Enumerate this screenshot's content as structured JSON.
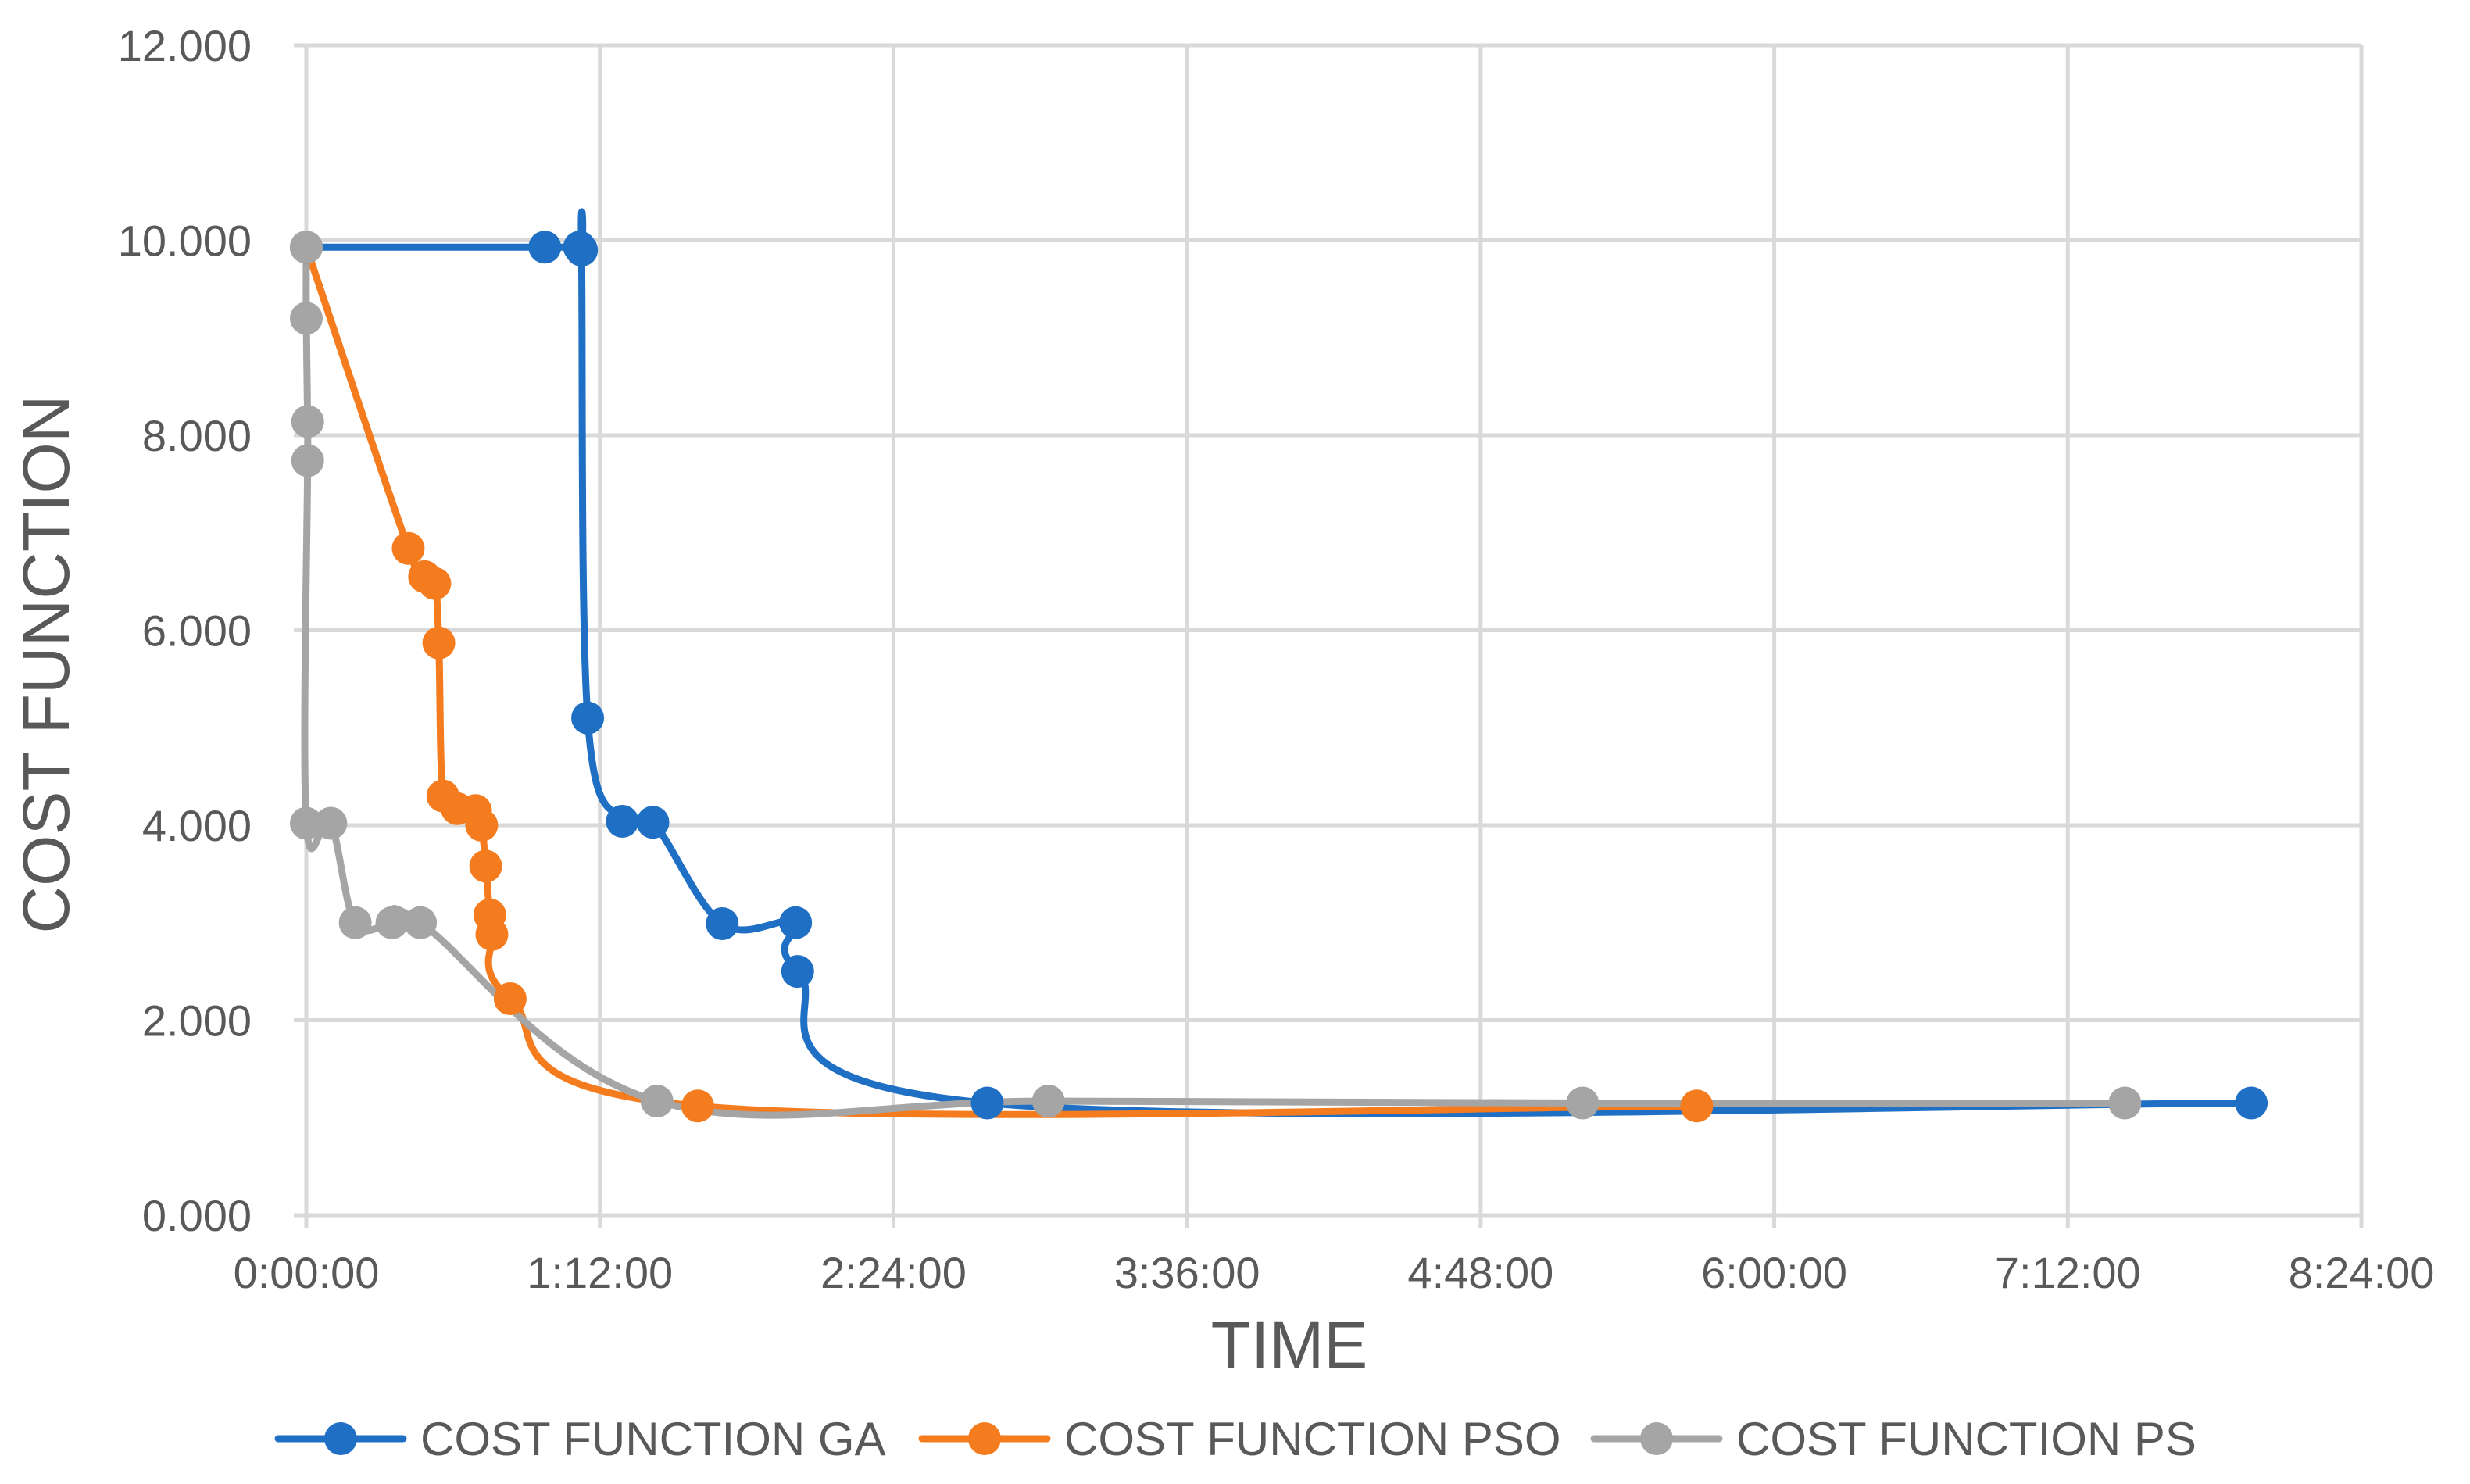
{
  "chart_data": {
    "type": "line",
    "title": "",
    "xlabel": "TIME",
    "ylabel": "COST FUNCTION",
    "xlim": [
      "0:00:00",
      "8:24:00"
    ],
    "ylim": [
      0,
      12
    ],
    "x_ticks": [
      "0:00:00",
      "1:12:00",
      "2:24:00",
      "3:36:00",
      "4:48:00",
      "6:00:00",
      "7:12:00",
      "8:24:00"
    ],
    "y_ticks": [
      "0.000",
      "2.000",
      "4.000",
      "6.000",
      "8.000",
      "10.000",
      "12.000"
    ],
    "grid": true,
    "legend_position": "bottom",
    "series": [
      {
        "name": "COST FUNCTION GA",
        "color": "#1f6fc5",
        "x": [
          "0:00:00",
          "0:58:30",
          "1:07:00",
          "1:07:30",
          "1:09:00",
          "1:17:30",
          "1:25:00",
          "1:42:00",
          "2:00:00",
          "2:00:30",
          "2:47:00",
          "7:57:00"
        ],
        "y": [
          9.93,
          9.93,
          9.93,
          9.9,
          5.1,
          4.04,
          4.03,
          2.99,
          3.0,
          2.5,
          1.15,
          1.15
        ]
      },
      {
        "name": "COST FUNCTION PSO",
        "color": "#f47c1f",
        "x": [
          "0:00:00",
          "0:25:00",
          "0:29:00",
          "0:31:30",
          "0:32:30",
          "0:33:30",
          "0:37:00",
          "0:41:30",
          "0:43:00",
          "0:44:00",
          "0:45:00",
          "0:45:30",
          "0:50:00",
          "1:36:00",
          "5:41:00"
        ],
        "y": [
          9.93,
          6.84,
          6.55,
          6.48,
          5.87,
          4.3,
          4.17,
          4.15,
          4.0,
          3.58,
          3.08,
          2.88,
          2.22,
          1.12,
          1.12
        ]
      },
      {
        "name": "COST FUNCTION PS",
        "color": "#a5a5a5",
        "x": [
          "0:00:00",
          "0:00:00",
          "0:00:20",
          "0:00:20",
          "0:00:00",
          "0:06:00",
          "0:12:00",
          "0:21:00",
          "0:28:00",
          "1:26:00",
          "3:02:00",
          "5:13:00",
          "7:26:00"
        ],
        "y": [
          9.93,
          9.2,
          8.14,
          7.74,
          4.02,
          4.02,
          3.0,
          3.0,
          3.0,
          1.17,
          1.17,
          1.15,
          1.15
        ]
      }
    ]
  }
}
